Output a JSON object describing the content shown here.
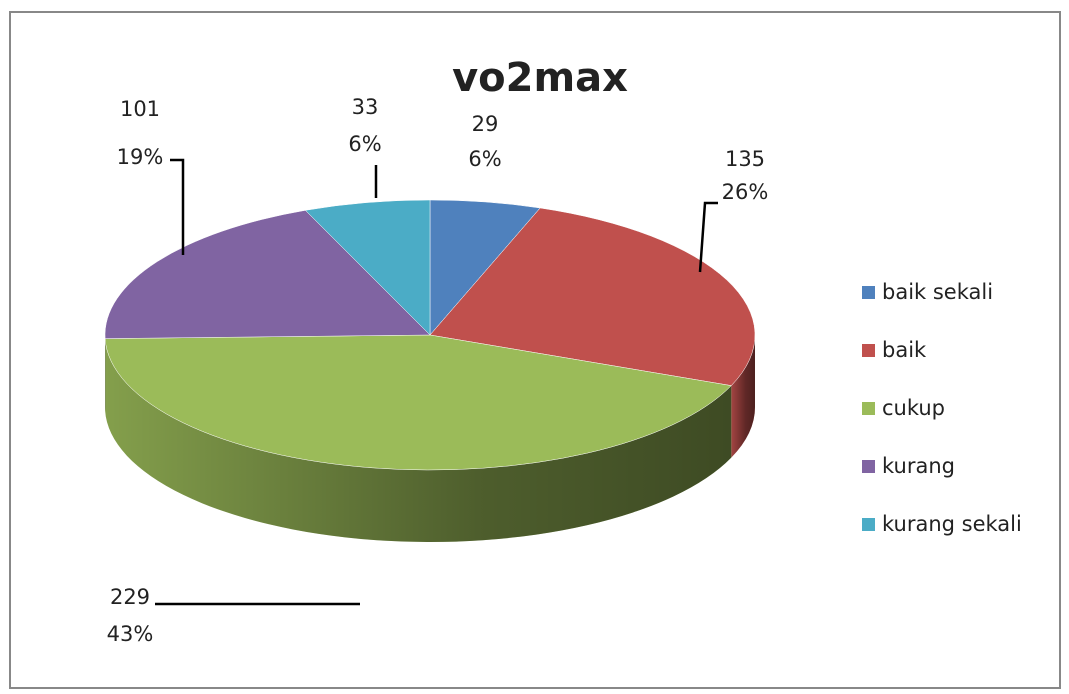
{
  "chart_data": {
    "type": "pie3d",
    "title": "vo2max",
    "categories": [
      "baik sekali",
      "baik",
      "cukup",
      "kurang",
      "kurang sekali"
    ],
    "values": [
      29,
      135,
      229,
      101,
      33
    ],
    "percent_labels": [
      "6%",
      "26%",
      "43%",
      "19%",
      "6%"
    ],
    "colors": [
      "#4F81BD",
      "#C0504D",
      "#9BBB59",
      "#8064A2",
      "#4BACC6"
    ],
    "legend": "right"
  }
}
